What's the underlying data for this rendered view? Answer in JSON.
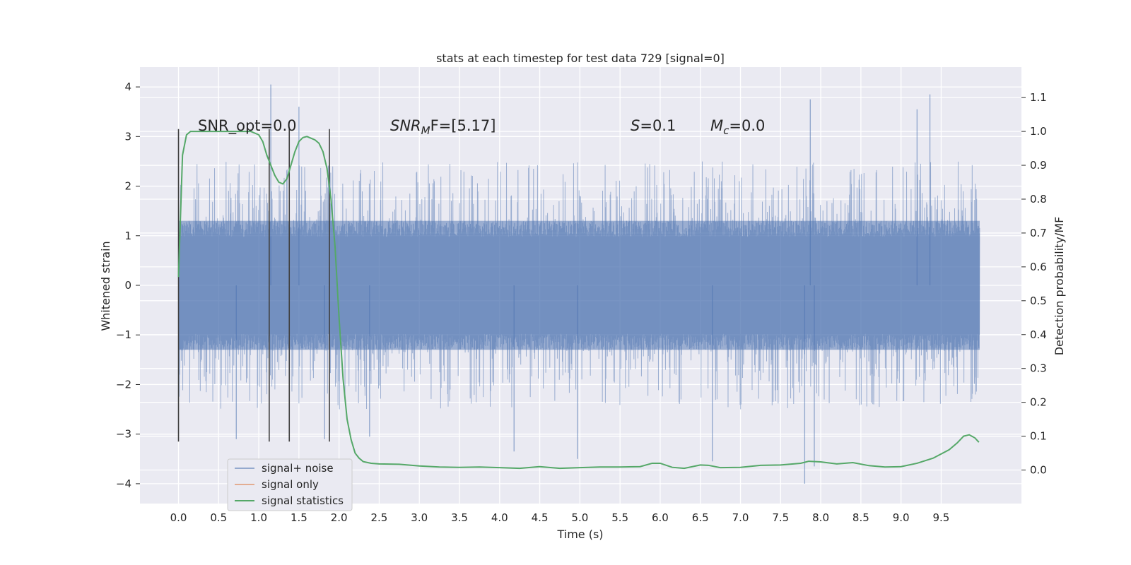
{
  "chart_data": {
    "type": "line",
    "title": "stats at each timestep for test data 729 [signal=0]",
    "xlabel": "Time (s)",
    "ylabel": "Whitened strain",
    "y2label": "Detection probability/MF",
    "xlim": [
      -0.48,
      10.5
    ],
    "ylim": [
      -4.4,
      4.4
    ],
    "y2lim": [
      -0.099,
      1.19
    ],
    "grid": true,
    "x_ticks": [
      "0.0",
      "0.5",
      "1.0",
      "1.5",
      "2.0",
      "2.5",
      "3.0",
      "3.5",
      "4.0",
      "4.5",
      "5.0",
      "5.5",
      "6.0",
      "6.5",
      "7.0",
      "7.5",
      "8.0",
      "8.5",
      "9.0",
      "9.5"
    ],
    "y_ticks": [
      "−4",
      "−3",
      "−2",
      "−1",
      "0",
      "1",
      "2",
      "3",
      "4"
    ],
    "y2_ticks": [
      "0.0",
      "0.1",
      "0.2",
      "0.3",
      "0.4",
      "0.5",
      "0.6",
      "0.7",
      "0.8",
      "0.9",
      "1.0",
      "1.1"
    ],
    "annotations": {
      "snr_opt": "SNR_opt=0.0",
      "snr_mf_italic": "SNR",
      "snr_mf_sub": "M",
      "snr_mf_rest": "F=[5.17]",
      "s_italic": "S",
      "s_rest": "=0.1",
      "mc_italic": "M",
      "mc_sub": "c",
      "mc_rest": "=0.0"
    },
    "vertical_markers_x": [
      0.0,
      1.13,
      1.38,
      1.88
    ],
    "vertical_markers_yrange": [
      -3.15,
      3.15
    ],
    "series": [
      {
        "name": "signal+ noise",
        "axis": "left",
        "color": "#4c72b0",
        "x_range": [
          0.0,
          9.98
        ],
        "envelope_inner": [
          -1.3,
          1.3
        ],
        "typical_peaks": [
          -2.5,
          2.5
        ],
        "extreme_peaks": [
          {
            "x": 1.15,
            "y": 4.05
          },
          {
            "x": 1.5,
            "y": 3.6
          },
          {
            "x": 9.36,
            "y": 3.85
          },
          {
            "x": 7.87,
            "y": 3.75
          },
          {
            "x": 9.2,
            "y": 3.55
          },
          {
            "x": 7.8,
            "y": -4.0
          },
          {
            "x": 7.92,
            "y": -3.65
          },
          {
            "x": 6.65,
            "y": -3.55
          },
          {
            "x": 4.97,
            "y": -3.5
          },
          {
            "x": 4.18,
            "y": -3.35
          },
          {
            "x": 0.72,
            "y": -3.1
          },
          {
            "x": 2.38,
            "y": -3.05
          },
          {
            "x": 1.82,
            "y": -3.1
          }
        ]
      },
      {
        "name": "signal only",
        "axis": "left",
        "color": "#dd8452",
        "x": [],
        "y": []
      },
      {
        "name": "signal statistics",
        "axis": "right",
        "color": "#55a868",
        "x": [
          0.0,
          0.05,
          0.1,
          0.15,
          0.2,
          0.3,
          0.4,
          0.5,
          0.6,
          0.7,
          0.8,
          0.9,
          1.0,
          1.05,
          1.1,
          1.15,
          1.2,
          1.25,
          1.3,
          1.35,
          1.4,
          1.45,
          1.5,
          1.55,
          1.6,
          1.65,
          1.7,
          1.75,
          1.8,
          1.85,
          1.9,
          1.95,
          2.0,
          2.05,
          2.1,
          2.15,
          2.2,
          2.25,
          2.3,
          2.4,
          2.5,
          2.75,
          3.0,
          3.25,
          3.5,
          3.75,
          4.0,
          4.25,
          4.5,
          4.75,
          5.0,
          5.25,
          5.5,
          5.75,
          5.9,
          6.0,
          6.15,
          6.3,
          6.5,
          6.6,
          6.75,
          7.0,
          7.25,
          7.5,
          7.75,
          7.85,
          8.0,
          8.2,
          8.4,
          8.6,
          8.8,
          9.0,
          9.2,
          9.4,
          9.6,
          9.7,
          9.78,
          9.85,
          9.92,
          9.97
        ],
        "y": [
          0.57,
          0.93,
          0.99,
          1.0,
          1.0,
          1.0,
          1.0,
          1.0,
          1.0,
          1.0,
          1.0,
          1.0,
          0.99,
          0.97,
          0.93,
          0.9,
          0.87,
          0.85,
          0.845,
          0.86,
          0.9,
          0.94,
          0.97,
          0.982,
          0.985,
          0.98,
          0.975,
          0.965,
          0.94,
          0.89,
          0.8,
          0.66,
          0.45,
          0.27,
          0.15,
          0.09,
          0.05,
          0.035,
          0.025,
          0.02,
          0.018,
          0.017,
          0.012,
          0.009,
          0.008,
          0.009,
          0.007,
          0.005,
          0.01,
          0.005,
          0.007,
          0.009,
          0.009,
          0.01,
          0.02,
          0.02,
          0.008,
          0.005,
          0.015,
          0.014,
          0.007,
          0.008,
          0.014,
          0.015,
          0.02,
          0.026,
          0.024,
          0.018,
          0.022,
          0.013,
          0.009,
          0.01,
          0.02,
          0.035,
          0.06,
          0.08,
          0.1,
          0.104,
          0.095,
          0.082
        ]
      }
    ],
    "legend": {
      "placement": "lower-left",
      "entries": [
        "signal+ noise",
        "signal only",
        "signal statistics"
      ]
    },
    "colors": {
      "axes_bg": "#eaeaf2",
      "grid": "#ffffff",
      "marker": "#404040"
    }
  }
}
